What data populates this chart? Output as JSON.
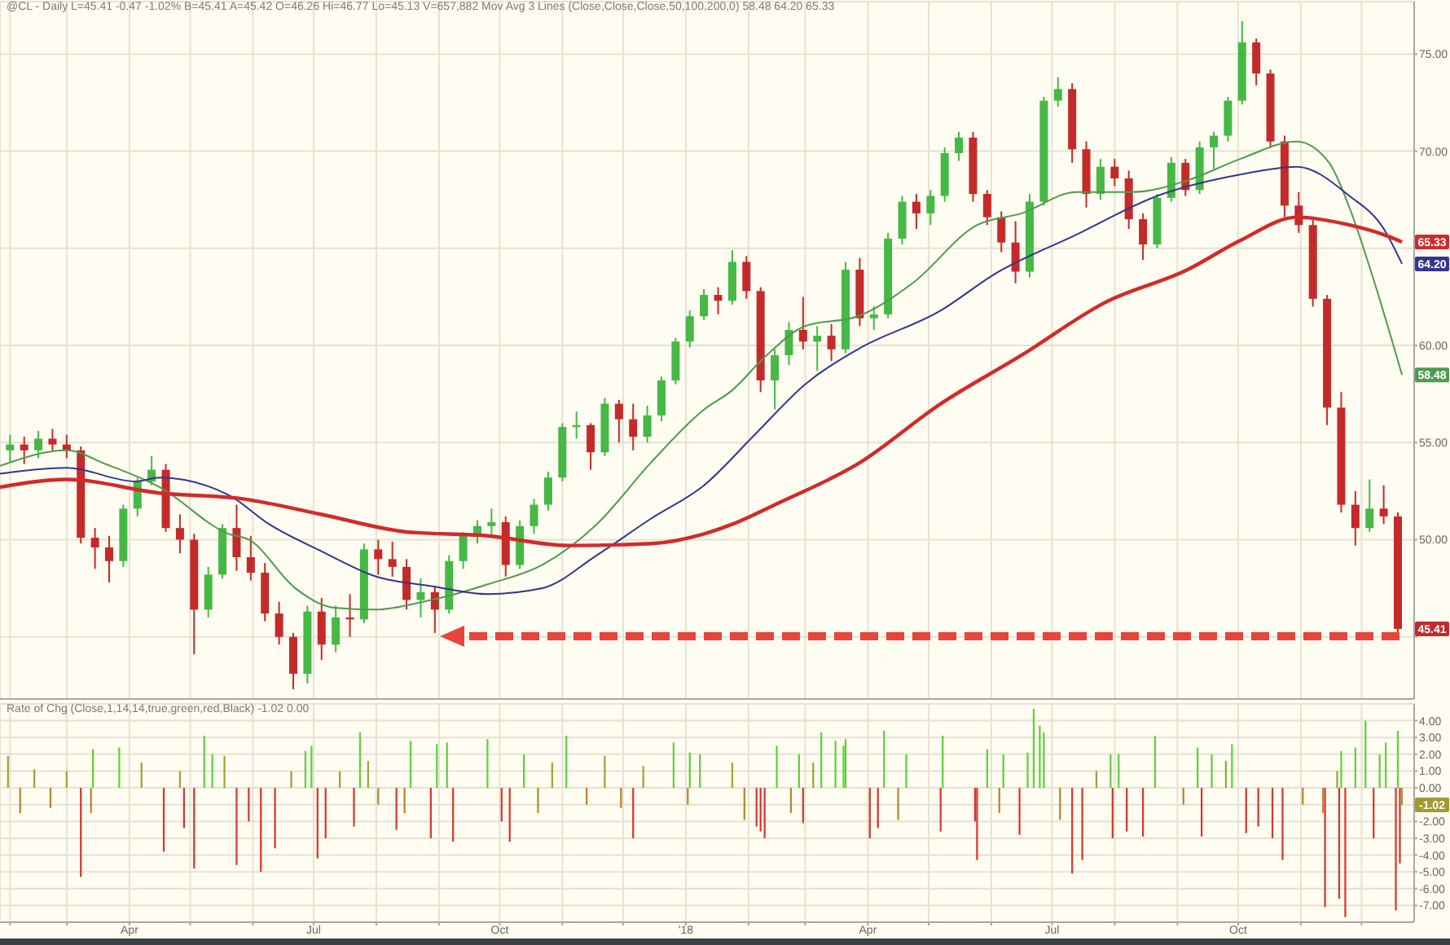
{
  "chart_data": [
    {
      "type": "candlestick",
      "title": "@CL - Daily L=45.41 -0.47 -1.02% B=45.41 A=45.42 O=46.26 Hi=46.77 Lo=45.13 V=657,882 Mov Avg 3 Lines (Close,Close,Close,50,100,200,0) 58.48 64.20 65.33",
      "x": [
        "2017-02-01",
        "2017-02-08",
        "2017-02-15",
        "2017-02-22",
        "2017-03-01",
        "2017-03-08",
        "2017-03-15",
        "2017-03-22",
        "2017-03-29",
        "2017-04-05",
        "2017-04-12",
        "2017-04-19",
        "2017-04-26",
        "2017-05-03",
        "2017-05-10",
        "2017-05-17",
        "2017-05-24",
        "2017-05-31",
        "2017-06-07",
        "2017-06-14",
        "2017-06-21",
        "2017-06-28",
        "2017-07-05",
        "2017-07-12",
        "2017-07-19",
        "2017-07-26",
        "2017-08-02",
        "2017-08-09",
        "2017-08-16",
        "2017-08-23",
        "2017-08-30",
        "2017-09-06",
        "2017-09-13",
        "2017-09-20",
        "2017-09-27",
        "2017-10-04",
        "2017-10-11",
        "2017-10-18",
        "2017-10-25",
        "2017-11-01",
        "2017-11-08",
        "2017-11-15",
        "2017-11-22",
        "2017-11-29",
        "2017-12-06",
        "2017-12-13",
        "2017-12-20",
        "2017-12-27",
        "2018-01-03",
        "2018-01-10",
        "2018-01-17",
        "2018-01-24",
        "2018-01-31",
        "2018-02-07",
        "2018-02-14",
        "2018-02-21",
        "2018-02-28",
        "2018-03-07",
        "2018-03-14",
        "2018-03-21",
        "2018-03-28",
        "2018-04-04",
        "2018-04-11",
        "2018-04-18",
        "2018-04-25",
        "2018-05-02",
        "2018-05-09",
        "2018-05-16",
        "2018-05-23",
        "2018-05-30",
        "2018-06-06",
        "2018-06-13",
        "2018-06-20",
        "2018-06-27",
        "2018-07-04",
        "2018-07-11",
        "2018-07-18",
        "2018-07-25",
        "2018-08-01",
        "2018-08-08",
        "2018-08-15",
        "2018-08-22",
        "2018-08-29",
        "2018-09-05",
        "2018-09-12",
        "2018-09-19",
        "2018-09-26",
        "2018-10-03",
        "2018-10-10",
        "2018-10-17",
        "2018-10-24",
        "2018-10-31",
        "2018-11-07",
        "2018-11-14",
        "2018-11-21",
        "2018-11-28",
        "2018-12-05",
        "2018-12-12",
        "2018-12-19"
      ],
      "ohlc": [
        [
          54.6,
          55.4,
          54.0,
          54.9
        ],
        [
          54.9,
          55.3,
          53.9,
          54.6
        ],
        [
          54.6,
          55.6,
          54.2,
          55.2
        ],
        [
          55.2,
          55.7,
          54.6,
          54.9
        ],
        [
          54.9,
          55.4,
          54.2,
          54.6
        ],
        [
          54.6,
          54.8,
          49.8,
          50.1
        ],
        [
          50.1,
          50.6,
          48.5,
          49.6
        ],
        [
          49.6,
          50.2,
          47.8,
          48.9
        ],
        [
          48.9,
          51.8,
          48.6,
          51.6
        ],
        [
          51.6,
          53.2,
          51.2,
          53.0
        ],
        [
          53.0,
          54.3,
          52.8,
          53.6
        ],
        [
          53.6,
          53.9,
          50.4,
          50.6
        ],
        [
          50.6,
          51.3,
          49.3,
          50.0
        ],
        [
          50.0,
          50.3,
          44.1,
          46.4
        ],
        [
          46.4,
          48.6,
          46.0,
          48.2
        ],
        [
          48.2,
          50.8,
          48.0,
          50.6
        ],
        [
          50.6,
          51.8,
          48.4,
          49.1
        ],
        [
          49.1,
          50.2,
          47.9,
          48.3
        ],
        [
          48.3,
          48.8,
          45.8,
          46.2
        ],
        [
          46.2,
          46.8,
          44.6,
          45.0
        ],
        [
          45.0,
          45.2,
          42.3,
          43.1
        ],
        [
          43.1,
          46.6,
          42.6,
          46.3
        ],
        [
          46.3,
          47.0,
          43.8,
          44.6
        ],
        [
          44.6,
          46.6,
          44.2,
          46.0
        ],
        [
          46.0,
          47.2,
          45.0,
          45.9
        ],
        [
          45.9,
          49.8,
          45.7,
          49.5
        ],
        [
          49.5,
          50.0,
          48.2,
          49.0
        ],
        [
          49.0,
          49.9,
          48.1,
          48.6
        ],
        [
          48.6,
          49.0,
          46.4,
          46.9
        ],
        [
          46.9,
          48.0,
          46.0,
          47.3
        ],
        [
          47.3,
          47.6,
          45.2,
          46.4
        ],
        [
          46.4,
          49.2,
          46.2,
          48.9
        ],
        [
          48.9,
          50.4,
          48.5,
          50.2
        ],
        [
          50.2,
          51.0,
          49.8,
          50.7
        ],
        [
          50.7,
          51.6,
          50.1,
          50.9
        ],
        [
          50.9,
          51.2,
          48.1,
          48.7
        ],
        [
          48.7,
          51.0,
          48.5,
          50.7
        ],
        [
          50.7,
          52.1,
          50.3,
          51.8
        ],
        [
          51.8,
          53.5,
          51.5,
          53.2
        ],
        [
          53.2,
          56.0,
          53.0,
          55.8
        ],
        [
          55.8,
          56.6,
          55.2,
          55.9
        ],
        [
          55.9,
          56.0,
          53.6,
          54.5
        ],
        [
          54.5,
          57.3,
          54.3,
          57.0
        ],
        [
          57.0,
          57.2,
          55.0,
          56.2
        ],
        [
          56.2,
          57.0,
          54.6,
          55.3
        ],
        [
          55.3,
          56.9,
          55.0,
          56.4
        ],
        [
          56.4,
          58.4,
          56.1,
          58.2
        ],
        [
          58.2,
          60.4,
          58.0,
          60.2
        ],
        [
          60.2,
          61.8,
          59.9,
          61.5
        ],
        [
          61.5,
          62.9,
          61.3,
          62.6
        ],
        [
          62.6,
          63.0,
          61.6,
          62.3
        ],
        [
          62.3,
          64.9,
          62.1,
          64.3
        ],
        [
          64.3,
          64.6,
          62.4,
          62.8
        ],
        [
          62.8,
          63.0,
          57.6,
          58.2
        ],
        [
          58.2,
          59.8,
          56.7,
          59.5
        ],
        [
          59.5,
          61.2,
          59.0,
          60.8
        ],
        [
          60.8,
          62.5,
          59.8,
          60.2
        ],
        [
          60.2,
          61.0,
          58.7,
          60.5
        ],
        [
          60.5,
          61.1,
          59.2,
          59.8
        ],
        [
          59.8,
          64.3,
          59.6,
          63.9
        ],
        [
          63.9,
          64.5,
          61.0,
          61.4
        ],
        [
          61.4,
          62.0,
          60.8,
          61.6
        ],
        [
          61.6,
          65.8,
          61.4,
          65.5
        ],
        [
          65.5,
          67.7,
          65.2,
          67.4
        ],
        [
          67.4,
          67.8,
          66.0,
          66.8
        ],
        [
          66.8,
          68.0,
          66.2,
          67.7
        ],
        [
          67.7,
          70.2,
          67.4,
          69.9
        ],
        [
          69.9,
          71.0,
          69.5,
          70.7
        ],
        [
          70.7,
          71.0,
          67.4,
          67.8
        ],
        [
          67.8,
          68.0,
          66.2,
          66.6
        ],
        [
          66.6,
          66.9,
          64.8,
          65.3
        ],
        [
          65.3,
          66.4,
          63.2,
          63.8
        ],
        [
          63.8,
          67.8,
          63.5,
          67.4
        ],
        [
          67.4,
          72.8,
          67.2,
          72.6
        ],
        [
          72.6,
          73.8,
          72.3,
          73.2
        ],
        [
          73.2,
          73.5,
          69.4,
          70.1
        ],
        [
          70.1,
          70.5,
          67.1,
          67.8
        ],
        [
          67.8,
          69.6,
          67.5,
          69.2
        ],
        [
          69.2,
          69.6,
          68.2,
          68.6
        ],
        [
          68.6,
          69.0,
          66.0,
          66.5
        ],
        [
          66.5,
          66.8,
          64.4,
          65.2
        ],
        [
          65.2,
          67.8,
          65.0,
          67.6
        ],
        [
          67.6,
          69.7,
          67.4,
          69.4
        ],
        [
          69.4,
          69.6,
          67.7,
          68.0
        ],
        [
          68.0,
          70.5,
          67.8,
          70.2
        ],
        [
          70.2,
          71.0,
          69.1,
          70.8
        ],
        [
          70.8,
          72.8,
          70.5,
          72.6
        ],
        [
          72.6,
          76.7,
          72.4,
          75.6
        ],
        [
          75.6,
          75.8,
          73.4,
          74.0
        ],
        [
          74.0,
          74.2,
          70.2,
          70.5
        ],
        [
          70.5,
          70.8,
          66.6,
          67.2
        ],
        [
          67.2,
          67.9,
          65.8,
          66.2
        ],
        [
          66.2,
          66.6,
          62.0,
          62.4
        ],
        [
          62.4,
          62.6,
          55.9,
          56.8
        ],
        [
          56.8,
          57.6,
          51.4,
          51.8
        ],
        [
          51.8,
          52.5,
          49.7,
          50.6
        ],
        [
          50.6,
          53.1,
          50.4,
          51.6
        ],
        [
          51.6,
          52.8,
          50.8,
          51.2
        ],
        [
          51.2,
          51.4,
          45.1,
          45.41
        ]
      ],
      "colors": [
        "#46b846",
        "#c42a2a",
        "#46b846",
        "#c42a2a",
        "#c42a2a",
        "#c42a2a",
        "#c42a2a",
        "#c42a2a",
        "#46b846",
        "#46b846",
        "#46b846",
        "#c42a2a",
        "#c42a2a",
        "#c42a2a",
        "#46b846",
        "#46b846",
        "#c42a2a",
        "#c42a2a",
        "#c42a2a",
        "#c42a2a",
        "#c42a2a",
        "#46b846",
        "#c42a2a",
        "#46b846",
        "#c42a2a",
        "#46b846",
        "#c42a2a",
        "#c42a2a",
        "#c42a2a",
        "#46b846",
        "#c42a2a",
        "#46b846",
        "#46b846",
        "#46b846",
        "#46b846",
        "#c42a2a",
        "#46b846",
        "#46b846",
        "#46b846",
        "#46b846",
        "#46b846",
        "#c42a2a",
        "#46b846",
        "#c42a2a",
        "#c42a2a",
        "#46b846",
        "#46b846",
        "#46b846",
        "#46b846",
        "#46b846",
        "#c42a2a",
        "#46b846",
        "#c42a2a",
        "#c42a2a",
        "#46b846",
        "#46b846",
        "#c42a2a",
        "#46b846",
        "#c42a2a",
        "#46b846",
        "#c42a2a",
        "#46b846",
        "#46b846",
        "#46b846",
        "#c42a2a",
        "#46b846",
        "#46b846",
        "#46b846",
        "#c42a2a",
        "#c42a2a",
        "#c42a2a",
        "#c42a2a",
        "#46b846",
        "#46b846",
        "#46b846",
        "#c42a2a",
        "#c42a2a",
        "#46b846",
        "#c42a2a",
        "#c42a2a",
        "#c42a2a",
        "#46b846",
        "#46b846",
        "#c42a2a",
        "#46b846",
        "#46b846",
        "#46b846",
        "#46b846",
        "#c42a2a",
        "#c42a2a",
        "#c42a2a",
        "#c42a2a",
        "#c42a2a",
        "#c42a2a",
        "#c42a2a",
        "#c42a2a",
        "#46b846",
        "#c42a2a",
        "#c42a2a"
      ],
      "series": [
        {
          "type": "line",
          "color": "#4f9a4f",
          "x": [
            "2017-01-27",
            "2017-03-01",
            "2017-03-20",
            "2017-04-16",
            "2017-05-20",
            "2017-05-30",
            "2017-06-22",
            "2017-07-11",
            "2017-08-01",
            "2017-08-24",
            "2017-09-09",
            "2017-09-25",
            "2017-10-22",
            "2017-11-18",
            "2017-12-15",
            "2018-01-10",
            "2018-01-24",
            "2018-02-09",
            "2018-03-01",
            "2018-03-27",
            "2018-04-23",
            "2018-05-25",
            "2018-06-16",
            "2018-07-13",
            "2018-08-10",
            "2018-09-06",
            "2018-10-02",
            "2018-10-30",
            "2018-11-15",
            "2018-11-25",
            "2018-12-06",
            "2018-12-21"
          ],
          "values": [
            53.8,
            54.6,
            53.9,
            52.7,
            50.3,
            50.0,
            47.5,
            46.5,
            46.4,
            46.8,
            47.2,
            47.7,
            48.7,
            50.8,
            54.0,
            56.7,
            57.7,
            59.4,
            61.0,
            61.5,
            63.2,
            66.2,
            66.8,
            67.9,
            67.9,
            68.5,
            69.6,
            70.5,
            69.4,
            67.1,
            63.7,
            58.48
          ],
          "value_labels": [
            null,
            null,
            null,
            null,
            null,
            null,
            null,
            null,
            null,
            null,
            null,
            null,
            null,
            null,
            null,
            null,
            null,
            null,
            null,
            null,
            null,
            null,
            null,
            null,
            null,
            null,
            null,
            null,
            null,
            null,
            null,
            "58.48"
          ]
        },
        {
          "type": "line",
          "color": "#35358c",
          "x": [
            "2017-01-27",
            "2017-03-01",
            "2017-04-04",
            "2017-04-16",
            "2017-05-20",
            "2017-06-09",
            "2017-07-05",
            "2017-08-01",
            "2017-08-29",
            "2017-09-25",
            "2017-10-22",
            "2017-11-18",
            "2017-12-15",
            "2018-01-10",
            "2018-02-04",
            "2018-03-01",
            "2018-03-27",
            "2018-05-07",
            "2018-06-03",
            "2018-07-13",
            "2018-08-22",
            "2018-10-02",
            "2018-10-30",
            "2018-11-25",
            "2018-12-12",
            "2018-12-21"
          ],
          "values": [
            53.4,
            53.7,
            53.0,
            53.2,
            52.3,
            50.8,
            49.4,
            48.1,
            47.6,
            47.2,
            47.5,
            49.2,
            51.1,
            52.8,
            55.4,
            58.0,
            59.8,
            61.8,
            63.7,
            65.7,
            67.7,
            68.8,
            69.2,
            67.7,
            66.0,
            64.2
          ],
          "value_labels": [
            null,
            null,
            null,
            null,
            null,
            null,
            null,
            null,
            null,
            null,
            null,
            null,
            null,
            null,
            null,
            null,
            null,
            null,
            null,
            null,
            null,
            null,
            null,
            null,
            null,
            "64.20"
          ]
        },
        {
          "type": "line",
          "color": "#d22a2a",
          "x": [
            "2017-01-27",
            "2017-03-01",
            "2017-04-16",
            "2017-05-27",
            "2017-07-05",
            "2017-08-16",
            "2017-09-25",
            "2017-11-04",
            "2017-12-15",
            "2018-01-10",
            "2018-01-24",
            "2018-02-16",
            "2018-03-27",
            "2018-05-07",
            "2018-06-16",
            "2018-07-27",
            "2018-09-06",
            "2018-10-02",
            "2018-10-30",
            "2018-11-25",
            "2018-12-12",
            "2018-12-21"
          ],
          "values": [
            52.7,
            53.1,
            52.4,
            52.1,
            51.3,
            50.4,
            50.2,
            49.7,
            49.8,
            50.3,
            50.8,
            51.9,
            53.9,
            57.0,
            59.5,
            62.2,
            63.9,
            65.4,
            66.6,
            66.2,
            65.7,
            65.33
          ],
          "value_labels": [
            null,
            null,
            null,
            null,
            null,
            null,
            null,
            null,
            null,
            null,
            null,
            null,
            null,
            null,
            null,
            null,
            null,
            null,
            null,
            null,
            null,
            "65.33"
          ]
        }
      ],
      "annotations": [
        {
          "text": "45.41",
          "x": "2018-12-21",
          "y": 45.41
        }
      ],
      "xlim": [
        "2017-01-27",
        "2018-12-27"
      ],
      "xticks": [
        {
          "value": "2017-02-01",
          "label": null
        },
        {
          "value": "2017-03-01",
          "label": null
        },
        {
          "value": "2017-04-01",
          "label": null
        },
        {
          "value": "2017-05-01",
          "label": null
        },
        {
          "value": "2017-06-01",
          "label": null
        },
        {
          "value": "2017-07-01",
          "label": null
        },
        {
          "value": "2017-08-01",
          "label": null
        },
        {
          "value": "2017-09-01",
          "label": null
        },
        {
          "value": "2017-10-01",
          "label": null
        },
        {
          "value": "2017-11-01",
          "label": null
        },
        {
          "value": "2017-12-01",
          "label": null
        },
        {
          "value": "2018-01-01",
          "label": null
        },
        {
          "value": "2018-02-01",
          "label": null
        },
        {
          "value": "2018-03-01",
          "label": null
        },
        {
          "value": "2018-04-01",
          "label": null
        },
        {
          "value": "2018-05-01",
          "label": null
        },
        {
          "value": "2018-06-01",
          "label": null
        },
        {
          "value": "2018-07-01",
          "label": null
        },
        {
          "value": "2018-08-01",
          "label": null
        },
        {
          "value": "2018-09-01",
          "label": null
        },
        {
          "value": "2018-10-01",
          "label": null
        },
        {
          "value": "2018-11-01",
          "label": null
        },
        {
          "value": "2018-12-01",
          "label": null
        }
      ],
      "ylim": [
        41.8,
        77.7
      ],
      "yticks": [
        {
          "value": 45,
          "label": null
        },
        {
          "value": 50,
          "label": "50.00"
        },
        {
          "value": 55,
          "label": "55.00"
        },
        {
          "value": 60,
          "label": "60.00"
        },
        {
          "value": 65,
          "label": null
        },
        {
          "value": 70,
          "label": "70.00"
        },
        {
          "value": 75,
          "label": "75.00"
        }
      ],
      "grid": true,
      "tick_labels": "y"
    },
    {
      "type": "bar",
      "title": "Rate of Chg (Close,1,14,14,true,green,red,Black) -1.02 0.00",
      "x": [
        "2017-01-31",
        "2017-02-06",
        "2017-02-13",
        "2017-02-21",
        "2017-03-01",
        "2017-03-08",
        "2017-03-13",
        "2017-03-14",
        "2017-03-27",
        "2017-04-07",
        "2017-04-18",
        "2017-04-26",
        "2017-04-28",
        "2017-05-03",
        "2017-05-08",
        "2017-05-12",
        "2017-05-18",
        "2017-05-24",
        "2017-05-30",
        "2017-06-05",
        "2017-06-12",
        "2017-06-20",
        "2017-06-27",
        "2017-06-30",
        "2017-07-03",
        "2017-07-07",
        "2017-07-14",
        "2017-07-21",
        "2017-07-24",
        "2017-07-28",
        "2017-08-02",
        "2017-08-11",
        "2017-08-15",
        "2017-08-18",
        "2017-08-28",
        "2017-08-31",
        "2017-09-05",
        "2017-09-08",
        "2017-09-25",
        "2017-10-02",
        "2017-10-06",
        "2017-10-13",
        "2017-10-20",
        "2017-10-27",
        "2017-11-03",
        "2017-11-13",
        "2017-11-22",
        "2017-11-30",
        "2017-12-06",
        "2017-12-11",
        "2017-12-26",
        "2018-01-02",
        "2018-01-03",
        "2018-01-08",
        "2018-01-24",
        "2018-01-30",
        "2018-02-05",
        "2018-02-07",
        "2018-02-09",
        "2018-02-15",
        "2018-02-22",
        "2018-02-26",
        "2018-02-28",
        "2018-03-05",
        "2018-03-09",
        "2018-03-16",
        "2018-03-20",
        "2018-03-21",
        "2018-04-02",
        "2018-04-06",
        "2018-04-09",
        "2018-04-16",
        "2018-04-20",
        "2018-05-07",
        "2018-05-08",
        "2018-05-24",
        "2018-05-25",
        "2018-05-30",
        "2018-06-05",
        "2018-06-07",
        "2018-06-15",
        "2018-06-19",
        "2018-06-22",
        "2018-06-25",
        "2018-06-27",
        "2018-07-05",
        "2018-07-11",
        "2018-07-16",
        "2018-07-23",
        "2018-07-30",
        "2018-07-31",
        "2018-08-03",
        "2018-08-07",
        "2018-08-15",
        "2018-08-21",
        "2018-09-04",
        "2018-09-11",
        "2018-09-13",
        "2018-09-18",
        "2018-09-25",
        "2018-09-28",
        "2018-10-05",
        "2018-10-11",
        "2018-10-18",
        "2018-10-23",
        "2018-11-02",
        "2018-11-12",
        "2018-11-13",
        "2018-11-19",
        "2018-11-20",
        "2018-11-21",
        "2018-11-23",
        "2018-11-28",
        "2018-12-03",
        "2018-12-07",
        "2018-12-10",
        "2018-12-13",
        "2018-12-18",
        "2018-12-19",
        "2018-12-20",
        "2018-12-21"
      ],
      "values": [
        1.9,
        -1.5,
        1.1,
        -1.2,
        1.0,
        -5.3,
        -1.5,
        2.3,
        2.4,
        1.5,
        -3.8,
        1.0,
        -2.4,
        -4.8,
        3.1,
        2.0,
        1.9,
        -4.6,
        -2.0,
        -5.0,
        -3.6,
        1.0,
        2.2,
        2.5,
        -4.2,
        -3.0,
        1.0,
        -2.3,
        3.3,
        1.6,
        -1.0,
        -2.5,
        -1.5,
        2.8,
        -3.0,
        2.6,
        2.7,
        -3.2,
        2.9,
        -2.0,
        -3.2,
        2.0,
        -1.5,
        1.5,
        3.1,
        -1.0,
        1.9,
        -1.2,
        -3.0,
        1.3,
        2.7,
        -1.0,
        2.1,
        2.0,
        1.5,
        -1.9,
        -2.3,
        -2.6,
        -3.0,
        2.5,
        -1.5,
        2.0,
        -2.1,
        1.5,
        3.3,
        2.8,
        2.5,
        2.9,
        -3.0,
        -2.4,
        3.4,
        -1.9,
        2.0,
        -2.6,
        3.1,
        -2.0,
        -4.3,
        2.3,
        -1.5,
        2.0,
        -2.8,
        2.1,
        4.7,
        3.7,
        3.3,
        -1.9,
        -5.1,
        -4.3,
        1.0,
        2.0,
        -3.0,
        2.0,
        -2.6,
        -2.9,
        3.1,
        -1.0,
        2.4,
        -2.9,
        2.0,
        1.6,
        2.6,
        -2.7,
        -2.3,
        -3.0,
        -4.3,
        -1.0,
        -1.5,
        -7.1,
        1.0,
        -6.6,
        2.2,
        -7.7,
        2.4,
        4.0,
        -3.0,
        2.0,
        2.7,
        -7.3,
        3.4,
        -4.5,
        -1.02
      ],
      "colors": [
        "#93a83a",
        "#b8842c",
        "#93a83a",
        "#b8842c",
        "#93a83a",
        "#d8362b",
        "#b8842c",
        "#5cd13a",
        "#5cd13a",
        "#93a83a",
        "#d8362b",
        "#93a83a",
        "#d8362b",
        "#d8362b",
        "#5cd13a",
        "#5cd13a",
        "#93a83a",
        "#d8362b",
        "#d8362b",
        "#d8362b",
        "#d8362b",
        "#93a83a",
        "#5cd13a",
        "#5cd13a",
        "#d8362b",
        "#d8362b",
        "#93a83a",
        "#d8362b",
        "#5cd13a",
        "#93a83a",
        "#b8842c",
        "#d8362b",
        "#b8842c",
        "#5cd13a",
        "#d8362b",
        "#5cd13a",
        "#5cd13a",
        "#d8362b",
        "#5cd13a",
        "#d8362b",
        "#d8362b",
        "#5cd13a",
        "#b8842c",
        "#93a83a",
        "#5cd13a",
        "#b8842c",
        "#93a83a",
        "#b8842c",
        "#d8362b",
        "#93a83a",
        "#5cd13a",
        "#b8842c",
        "#5cd13a",
        "#5cd13a",
        "#93a83a",
        "#b8842c",
        "#d8362b",
        "#d8362b",
        "#d8362b",
        "#5cd13a",
        "#b8842c",
        "#5cd13a",
        "#d8362b",
        "#93a83a",
        "#5cd13a",
        "#5cd13a",
        "#5cd13a",
        "#5cd13a",
        "#d8362b",
        "#d8362b",
        "#5cd13a",
        "#b8842c",
        "#5cd13a",
        "#d8362b",
        "#5cd13a",
        "#d8362b",
        "#d8362b",
        "#5cd13a",
        "#b8842c",
        "#5cd13a",
        "#d8362b",
        "#5cd13a",
        "#5cd13a",
        "#5cd13a",
        "#5cd13a",
        "#b8842c",
        "#d8362b",
        "#d8362b",
        "#93a83a",
        "#5cd13a",
        "#d8362b",
        "#5cd13a",
        "#d8362b",
        "#d8362b",
        "#5cd13a",
        "#b8842c",
        "#5cd13a",
        "#d8362b",
        "#5cd13a",
        "#93a83a",
        "#5cd13a",
        "#d8362b",
        "#d8362b",
        "#d8362b",
        "#d8362b",
        "#b8842c",
        "#b8842c",
        "#d8362b",
        "#93a83a",
        "#d8362b",
        "#5cd13a",
        "#d8362b",
        "#5cd13a",
        "#5cd13a",
        "#d8362b",
        "#5cd13a",
        "#5cd13a",
        "#d8362b",
        "#5cd13a",
        "#d8362b",
        "#a39a2e"
      ],
      "annotations": [
        {
          "text": "-1.02",
          "x": "2018-12-21",
          "y": -1.02
        }
      ],
      "xlim": [
        "2017-01-27",
        "2018-12-27"
      ],
      "xticks": [
        {
          "value": "2017-02-01",
          "label": null
        },
        {
          "value": "2017-03-01",
          "label": null
        },
        {
          "value": "2017-04-01",
          "label": "Apr"
        },
        {
          "value": "2017-05-01",
          "label": null
        },
        {
          "value": "2017-06-01",
          "label": null
        },
        {
          "value": "2017-07-01",
          "label": "Jul"
        },
        {
          "value": "2017-08-01",
          "label": null
        },
        {
          "value": "2017-09-01",
          "label": null
        },
        {
          "value": "2017-10-01",
          "label": "Oct"
        },
        {
          "value": "2017-11-01",
          "label": null
        },
        {
          "value": "2017-12-01",
          "label": null
        },
        {
          "value": "2018-01-01",
          "label": "'18"
        },
        {
          "value": "2018-02-01",
          "label": null
        },
        {
          "value": "2018-03-01",
          "label": null
        },
        {
          "value": "2018-04-01",
          "label": "Apr"
        },
        {
          "value": "2018-05-01",
          "label": null
        },
        {
          "value": "2018-06-01",
          "label": null
        },
        {
          "value": "2018-07-01",
          "label": "Jul"
        },
        {
          "value": "2018-08-01",
          "label": null
        },
        {
          "value": "2018-09-01",
          "label": null
        },
        {
          "value": "2018-10-01",
          "label": "Oct"
        },
        {
          "value": "2018-11-01",
          "label": null
        },
        {
          "value": "2018-12-01",
          "label": null
        }
      ],
      "ylim": [
        -8,
        5
      ],
      "yticks": [
        {
          "value": 4,
          "label": "4.00"
        },
        {
          "value": 3,
          "label": "3.00"
        },
        {
          "value": 2,
          "label": "2.00"
        },
        {
          "value": 1,
          "label": "1.00"
        },
        {
          "value": 0,
          "label": "0.00"
        },
        {
          "value": -1,
          "label": null
        },
        {
          "value": -2,
          "label": "-2.00"
        },
        {
          "value": -3,
          "label": "-3.00"
        },
        {
          "value": -4,
          "label": "-4.00"
        },
        {
          "value": -5,
          "label": "-5.00"
        },
        {
          "value": -6,
          "label": "-6.00"
        },
        {
          "value": -7,
          "label": "-7.00"
        }
      ],
      "grid": true
    }
  ]
}
